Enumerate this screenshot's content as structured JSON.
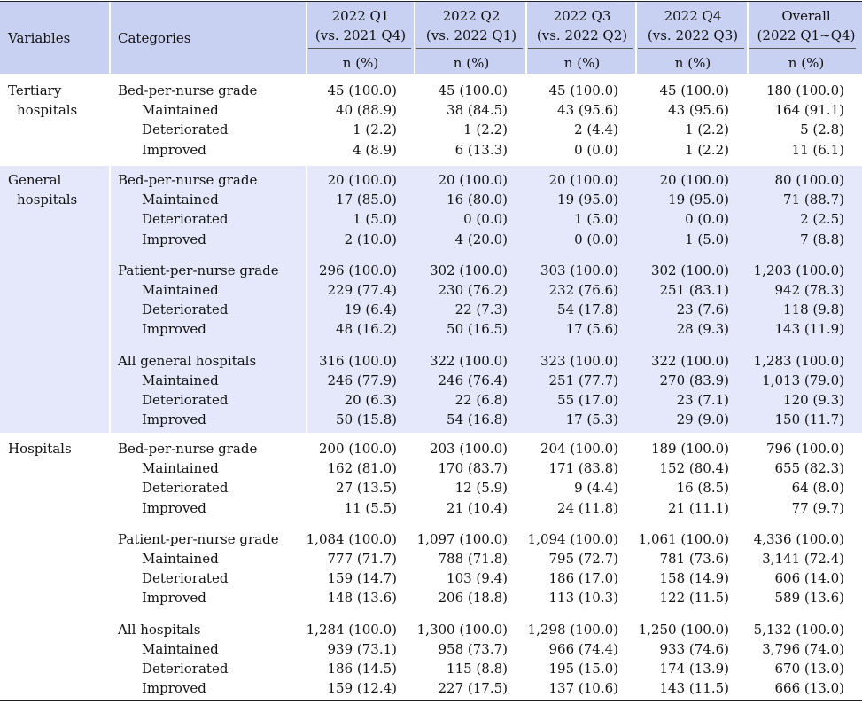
{
  "table": {
    "headers": {
      "variables": "Variables",
      "categories": "Categories",
      "periods": [
        {
          "line1": "2022 Q1",
          "line2": "(vs. 2021 Q4)",
          "unit": "n (%)"
        },
        {
          "line1": "2022 Q2",
          "line2": "(vs. 2022 Q1)",
          "unit": "n (%)"
        },
        {
          "line1": "2022 Q3",
          "line2": "(vs. 2022 Q2)",
          "unit": "n (%)"
        },
        {
          "line1": "2022 Q4",
          "line2": "(vs. 2022 Q3)",
          "unit": "n (%)"
        },
        {
          "line1": "Overall",
          "line2": "(2022 Q1~Q4)",
          "unit": "n (%)"
        }
      ]
    },
    "groups": [
      {
        "variable": [
          "Tertiary",
          "hospitals"
        ],
        "blocks": [
          {
            "rows": [
              {
                "label": "Bed-per-nurse grade",
                "values": [
                  "45 (100.0)",
                  "45 (100.0)",
                  "45 (100.0)",
                  "45 (100.0)",
                  "180 (100.0)"
                ]
              },
              {
                "label": "Maintained",
                "values": [
                  "40 (88.9)",
                  "38 (84.5)",
                  "43 (95.6)",
                  "43 (95.6)",
                  "164 (91.1)"
                ]
              },
              {
                "label": "Deteriorated",
                "values": [
                  "1 (2.2)",
                  "1 (2.2)",
                  "2 (4.4)",
                  "1 (2.2)",
                  "5 (2.8)"
                ]
              },
              {
                "label": "Improved",
                "values": [
                  "4 (8.9)",
                  "6 (13.3)",
                  "0 (0.0)",
                  "1 (2.2)",
                  "11 (6.1)"
                ]
              }
            ]
          }
        ]
      },
      {
        "variable": [
          "General",
          "hospitals"
        ],
        "blocks": [
          {
            "rows": [
              {
                "label": "Bed-per-nurse grade",
                "values": [
                  "20 (100.0)",
                  "20 (100.0)",
                  "20 (100.0)",
                  "20 (100.0)",
                  "80 (100.0)"
                ]
              },
              {
                "label": "Maintained",
                "values": [
                  "17 (85.0)",
                  "16 (80.0)",
                  "19 (95.0)",
                  "19 (95.0)",
                  "71 (88.7)"
                ]
              },
              {
                "label": "Deteriorated",
                "values": [
                  "1 (5.0)",
                  "0 (0.0)",
                  "1 (5.0)",
                  "0 (0.0)",
                  "2 (2.5)"
                ]
              },
              {
                "label": "Improved",
                "values": [
                  "2 (10.0)",
                  "4 (20.0)",
                  "0 (0.0)",
                  "1 (5.0)",
                  "7 (8.8)"
                ]
              }
            ]
          },
          {
            "rows": [
              {
                "label": "Patient-per-nurse grade",
                "values": [
                  "296 (100.0)",
                  "302 (100.0)",
                  "303 (100.0)",
                  "302 (100.0)",
                  "1,203 (100.0)"
                ]
              },
              {
                "label": "Maintained",
                "values": [
                  "229 (77.4)",
                  "230 (76.2)",
                  "232 (76.6)",
                  "251 (83.1)",
                  "942 (78.3)"
                ]
              },
              {
                "label": "Deteriorated",
                "values": [
                  "19 (6.4)",
                  "22 (7.3)",
                  "54 (17.8)",
                  "23 (7.6)",
                  "118 (9.8)"
                ]
              },
              {
                "label": "Improved",
                "values": [
                  "48 (16.2)",
                  "50 (16.5)",
                  "17 (5.6)",
                  "28 (9.3)",
                  "143 (11.9)"
                ]
              }
            ]
          },
          {
            "rows": [
              {
                "label": "All general hospitals",
                "values": [
                  "316 (100.0)",
                  "322 (100.0)",
                  "323 (100.0)",
                  "322 (100.0)",
                  "1,283 (100.0)"
                ]
              },
              {
                "label": "Maintained",
                "values": [
                  "246 (77.9)",
                  "246 (76.4)",
                  "251 (77.7)",
                  "270 (83.9)",
                  "1,013 (79.0)"
                ]
              },
              {
                "label": "Deteriorated",
                "values": [
                  "20 (6.3)",
                  "22 (6.8)",
                  "55 (17.0)",
                  "23 (7.1)",
                  "120 (9.3)"
                ]
              },
              {
                "label": "Improved",
                "values": [
                  "50 (15.8)",
                  "54 (16.8)",
                  "17 (5.3)",
                  "29 (9.0)",
                  "150 (11.7)"
                ]
              }
            ]
          }
        ]
      },
      {
        "variable": [
          "Hospitals"
        ],
        "blocks": [
          {
            "rows": [
              {
                "label": "Bed-per-nurse grade",
                "values": [
                  "200 (100.0)",
                  "203 (100.0)",
                  "204 (100.0)",
                  "189 (100.0)",
                  "796 (100.0)"
                ]
              },
              {
                "label": "Maintained",
                "values": [
                  "162 (81.0)",
                  "170 (83.7)",
                  "171 (83.8)",
                  "152 (80.4)",
                  "655 (82.3)"
                ]
              },
              {
                "label": "Deteriorated",
                "values": [
                  "27 (13.5)",
                  "12 (5.9)",
                  "9 (4.4)",
                  "16 (8.5)",
                  "64 (8.0)"
                ]
              },
              {
                "label": "Improved",
                "values": [
                  "11 (5.5)",
                  "21 (10.4)",
                  "24 (11.8)",
                  "21 (11.1)",
                  "77 (9.7)"
                ]
              }
            ]
          },
          {
            "rows": [
              {
                "label": "Patient-per-nurse grade",
                "values": [
                  "1,084 (100.0)",
                  "1,097 (100.0)",
                  "1,094 (100.0)",
                  "1,061 (100.0)",
                  "4,336 (100.0)"
                ]
              },
              {
                "label": "Maintained",
                "values": [
                  "777 (71.7)",
                  "788 (71.8)",
                  "795 (72.7)",
                  "781 (73.6)",
                  "3,141 (72.4)"
                ]
              },
              {
                "label": "Deteriorated",
                "values": [
                  "159 (14.7)",
                  "103 (9.4)",
                  "186 (17.0)",
                  "158 (14.9)",
                  "606 (14.0)"
                ]
              },
              {
                "label": "Improved",
                "values": [
                  "148 (13.6)",
                  "206 (18.8)",
                  "113 (10.3)",
                  "122 (11.5)",
                  "589 (13.6)"
                ]
              }
            ]
          },
          {
            "rows": [
              {
                "label": "All hospitals",
                "values": [
                  "1,284 (100.0)",
                  "1,300 (100.0)",
                  "1,298 (100.0)",
                  "1,250 (100.0)",
                  "5,132 (100.0)"
                ]
              },
              {
                "label": "Maintained",
                "values": [
                  "939 (73.1)",
                  "958 (73.7)",
                  "966 (74.4)",
                  "933 (74.6)",
                  "3,796 (74.0)"
                ]
              },
              {
                "label": "Deteriorated",
                "values": [
                  "186 (14.5)",
                  "115 (8.8)",
                  "195 (15.0)",
                  "174 (13.9)",
                  "670 (13.0)"
                ]
              },
              {
                "label": "Improved",
                "values": [
                  "159 (12.4)",
                  "227 (17.5)",
                  "137 (10.6)",
                  "143 (11.5)",
                  "666 (13.0)"
                ]
              }
            ]
          }
        ]
      }
    ]
  },
  "colors": {
    "header_bg": "#c9d1f2",
    "group_tint": "#e4e8fa"
  }
}
